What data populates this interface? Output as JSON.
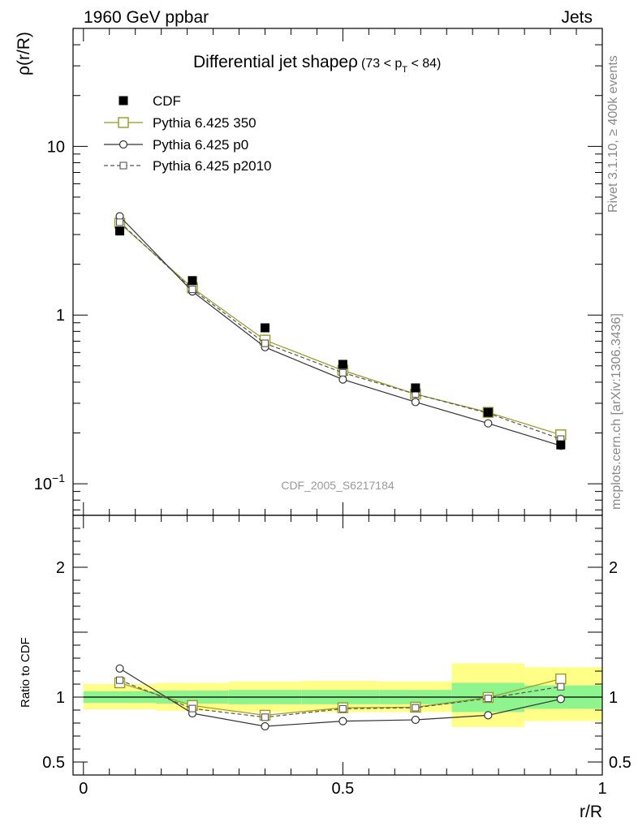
{
  "header": {
    "left": "1960 GeV ppbar",
    "right": "Jets",
    "side_top": "Rivet 3.1.10, ≥ 400k events",
    "side_bottom": "mcplots.cern.ch [arXiv:1306.3436]",
    "watermark": "CDF_2005_S6217184"
  },
  "chart_data": [
    {
      "type": "line",
      "panel": "main",
      "title": "Differential jet shapeρ",
      "title_range": "(73 < p",
      "title_sub": "T",
      "title_range_end": " < 84)",
      "ylabel": "ρ(r/R)",
      "xlabel": "",
      "xlim": [
        -0.02,
        1.0
      ],
      "ylim": [
        0.065,
        50
      ],
      "yscale": "log",
      "legend_placement": "top-left",
      "yticks": [
        {
          "value": 0.1,
          "label": "10",
          "exp": "−1"
        },
        {
          "value": 1,
          "label": "1",
          "exp": ""
        },
        {
          "value": 10,
          "label": "10",
          "exp": ""
        }
      ],
      "x": [
        0.07,
        0.21,
        0.35,
        0.5,
        0.64,
        0.78,
        0.92
      ],
      "series": [
        {
          "name": "CDF",
          "style": "data",
          "color": "#000000",
          "values": [
            3.15,
            1.6,
            0.84,
            0.51,
            0.37,
            0.265,
            0.17
          ]
        },
        {
          "name": "Pythia 6.425 350",
          "style": "solid-square",
          "color": "#999922",
          "values": [
            3.5,
            1.45,
            0.71,
            0.47,
            0.34,
            0.265,
            0.195
          ]
        },
        {
          "name": "Pythia 6.425 p0",
          "style": "solid-circle",
          "color": "#333333",
          "values": [
            3.85,
            1.38,
            0.645,
            0.415,
            0.305,
            0.228,
            0.168
          ]
        },
        {
          "name": "Pythia 6.425 p2010",
          "style": "dashed-square",
          "color": "#555555",
          "values": [
            3.55,
            1.42,
            0.68,
            0.455,
            0.34,
            0.262,
            0.184
          ]
        }
      ]
    },
    {
      "type": "line",
      "panel": "ratio",
      "ylabel": "Ratio to CDF",
      "xlabel": "r/R",
      "xlim": [
        -0.02,
        1.0
      ],
      "ylim": [
        0.4,
        2.4
      ],
      "xticks": [
        {
          "value": 0,
          "label": "0"
        },
        {
          "value": 0.5,
          "label": "0.5"
        },
        {
          "value": 1,
          "label": "1"
        }
      ],
      "yticks": [
        {
          "value": 0.5,
          "label": "0.5"
        },
        {
          "value": 1,
          "label": "1"
        },
        {
          "value": 2,
          "label": "2"
        }
      ],
      "bands": [
        {
          "x0": 0.0,
          "x1": 0.14,
          "green": [
            0.955,
            1.045
          ],
          "yellow": [
            0.905,
            1.1
          ]
        },
        {
          "x0": 0.14,
          "x1": 0.28,
          "green": [
            0.95,
            1.05
          ],
          "yellow": [
            0.895,
            1.11
          ]
        },
        {
          "x0": 0.28,
          "x1": 0.42,
          "green": [
            0.945,
            1.055
          ],
          "yellow": [
            0.885,
            1.12
          ]
        },
        {
          "x0": 0.42,
          "x1": 0.57,
          "green": [
            0.945,
            1.055
          ],
          "yellow": [
            0.885,
            1.125
          ]
        },
        {
          "x0": 0.57,
          "x1": 0.71,
          "green": [
            0.945,
            1.055
          ],
          "yellow": [
            0.885,
            1.12
          ]
        },
        {
          "x0": 0.71,
          "x1": 0.85,
          "green": [
            0.885,
            1.11
          ],
          "yellow": [
            0.77,
            1.26
          ]
        },
        {
          "x0": 0.85,
          "x1": 1.0,
          "green": [
            0.91,
            1.09
          ],
          "yellow": [
            0.815,
            1.23
          ]
        }
      ],
      "x": [
        0.07,
        0.21,
        0.35,
        0.5,
        0.64,
        0.78,
        0.92
      ],
      "series": [
        {
          "name": "Pythia 6.425 350",
          "style": "solid-square",
          "color": "#999922",
          "values": [
            1.11,
            0.935,
            0.86,
            0.918,
            0.922,
            0.997,
            1.14
          ]
        },
        {
          "name": "Pythia 6.425 p0",
          "style": "solid-circle",
          "color": "#333333",
          "values": [
            1.22,
            0.875,
            0.775,
            0.815,
            0.825,
            0.86,
            0.985
          ]
        },
        {
          "name": "Pythia 6.425 p2010",
          "style": "dashed-square",
          "color": "#555555",
          "values": [
            1.13,
            0.912,
            0.845,
            0.91,
            0.918,
            0.99,
            1.08
          ]
        }
      ]
    }
  ]
}
